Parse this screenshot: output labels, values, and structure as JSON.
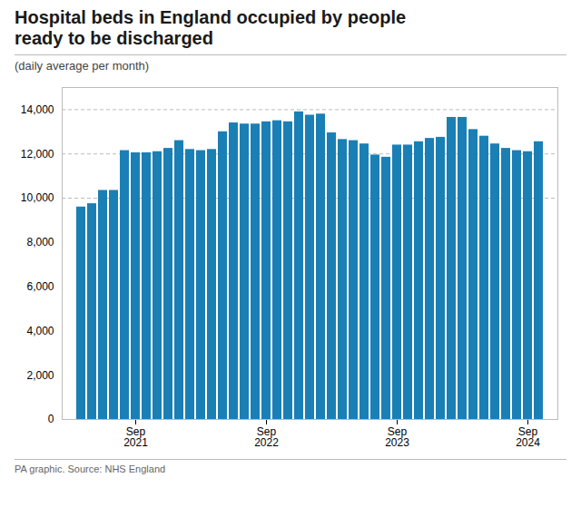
{
  "chart_data": {
    "type": "bar",
    "title": "Hospital beds in England occupied by people\nready to be discharged",
    "subtitle": "(daily average per month)",
    "source": "PA graphic. Source: NHS England",
    "categories": [
      null,
      null,
      null,
      null,
      null,
      "Sep\n2021",
      null,
      null,
      null,
      null,
      null,
      null,
      null,
      null,
      null,
      null,
      null,
      "Sep\n2022",
      null,
      null,
      null,
      null,
      null,
      null,
      null,
      null,
      null,
      null,
      null,
      "Sep\n2023",
      null,
      null,
      null,
      null,
      null,
      null,
      null,
      null,
      null,
      null,
      null,
      "Sep\n2024",
      null
    ],
    "values": [
      9600,
      9750,
      10350,
      10350,
      12150,
      12050,
      12050,
      12100,
      12250,
      12600,
      12200,
      12150,
      12200,
      13000,
      13400,
      13350,
      13350,
      13450,
      13500,
      13450,
      13900,
      13750,
      13800,
      12950,
      12650,
      12600,
      12450,
      11950,
      11850,
      12400,
      12400,
      12550,
      12700,
      12750,
      13650,
      13650,
      13100,
      12800,
      12450,
      12250,
      12150,
      12100,
      12550
    ],
    "color": "#1a7fb5",
    "ylim": [
      0,
      15000
    ],
    "yticks": [
      0,
      {
        "value": 2000,
        "label": "2,000"
      },
      {
        "value": 4000,
        "label": "4,000"
      },
      {
        "value": 6000,
        "label": "6,000"
      },
      {
        "value": 8000,
        "label": "8,000"
      },
      {
        "value": 10000,
        "label": "10,000"
      },
      {
        "value": 12000,
        "label": "12,000"
      },
      {
        "value": 14000,
        "label": "14,000"
      }
    ],
    "grid_lines": [
      10000,
      12000,
      14000
    ]
  }
}
